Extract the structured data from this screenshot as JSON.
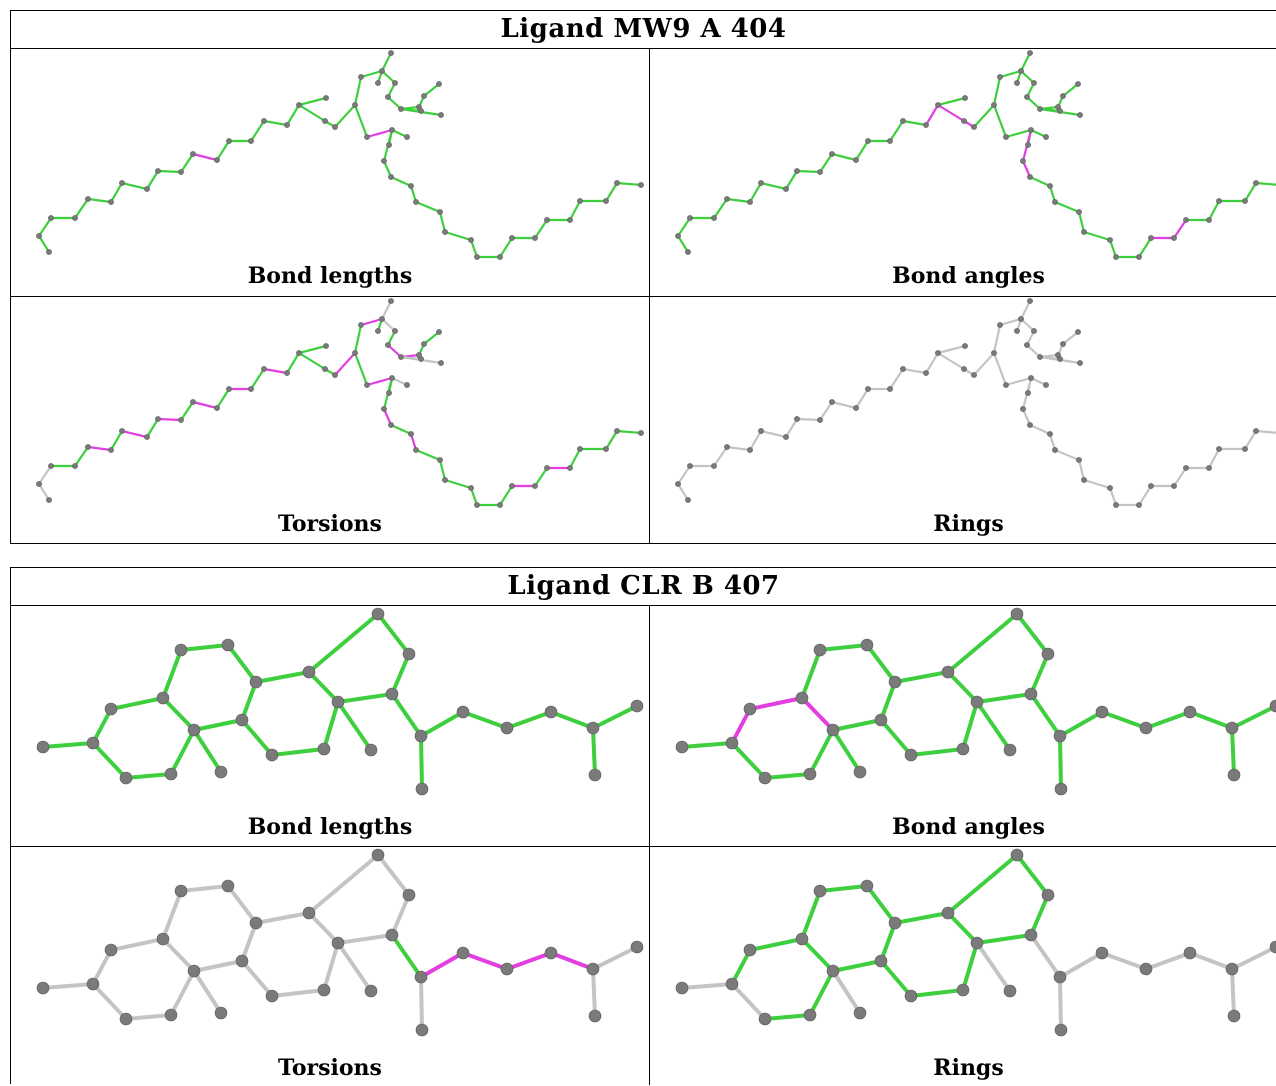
{
  "colors": {
    "ok": "#3ecf3e",
    "outlier": "#e23ee0",
    "excluded": "#c4c4c4",
    "atom": "#7a7a7a"
  },
  "ligands": [
    {
      "title": "Ligand MW9 A 404",
      "panels": [
        {
          "label": "Bond lengths",
          "mode": "bonds"
        },
        {
          "label": "Bond angles",
          "mode": "angles"
        },
        {
          "label": "Torsions",
          "mode": "torsions"
        },
        {
          "label": "Rings",
          "mode": "rings"
        }
      ]
    },
    {
      "title": "Ligand CLR B 407",
      "panels": [
        {
          "label": "Bond lengths",
          "mode": "bonds"
        },
        {
          "label": "Bond angles",
          "mode": "angles"
        },
        {
          "label": "Torsions",
          "mode": "torsions"
        },
        {
          "label": "Rings",
          "mode": "rings"
        }
      ]
    }
  ]
}
